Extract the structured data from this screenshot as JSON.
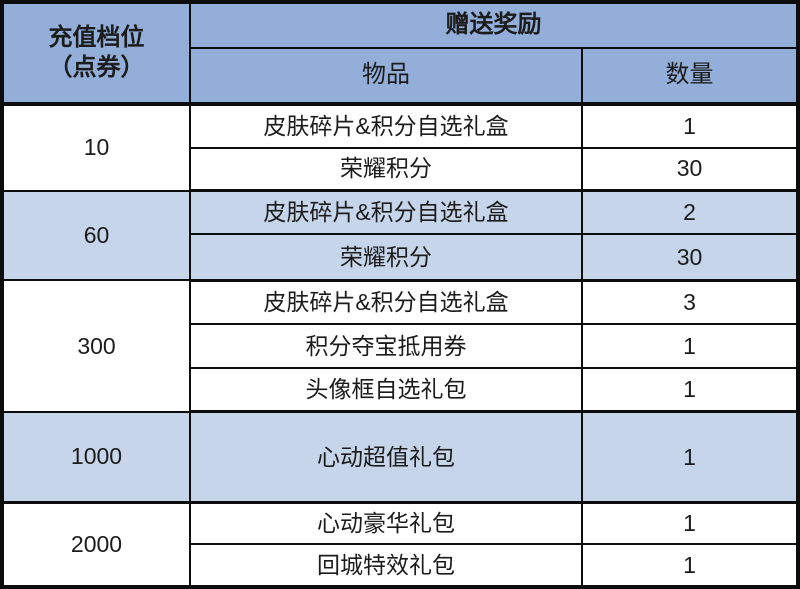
{
  "chart_data": {
    "type": "table",
    "columns": [
      "充值档位（点券）",
      "物品",
      "数量"
    ],
    "column_group_header": "赠送奖励",
    "rows": [
      [
        "10",
        "皮肤碎片&积分自选礼盒",
        "1"
      ],
      [
        "10",
        "荣耀积分",
        "30"
      ],
      [
        "60",
        "皮肤碎片&积分自选礼盒",
        "2"
      ],
      [
        "60",
        "荣耀积分",
        "30"
      ],
      [
        "300",
        "皮肤碎片&积分自选礼盒",
        "3"
      ],
      [
        "300",
        "积分夺宝抵用券",
        "1"
      ],
      [
        "300",
        "头像框自选礼包",
        "1"
      ],
      [
        "1000",
        "心动超值礼包",
        "1"
      ],
      [
        "2000",
        "心动豪华礼包",
        "1"
      ],
      [
        "2000",
        "回城特效礼包",
        "1"
      ]
    ],
    "layout_hints": {
      "tier_cells_merged_per_group": true,
      "highlighted_tier_groups": [
        "60",
        "1000"
      ],
      "group_header_spans": [
        "物品",
        "数量"
      ]
    }
  },
  "table": {
    "header": {
      "tier_label_line1": "充值档位",
      "tier_label_line2": "（点券）",
      "reward_label": "赠送奖励",
      "item_label": "物品",
      "qty_label": "数量"
    },
    "groups": [
      {
        "tier": "10",
        "highlight": false,
        "rewards": [
          {
            "item": "皮肤碎片&积分自选礼盒",
            "qty": "1"
          },
          {
            "item": "荣耀积分",
            "qty": "30"
          }
        ]
      },
      {
        "tier": "60",
        "highlight": true,
        "rewards": [
          {
            "item": "皮肤碎片&积分自选礼盒",
            "qty": "2"
          },
          {
            "item": "荣耀积分",
            "qty": "30"
          }
        ]
      },
      {
        "tier": "300",
        "highlight": false,
        "rewards": [
          {
            "item": "皮肤碎片&积分自选礼盒",
            "qty": "3"
          },
          {
            "item": "积分夺宝抵用券",
            "qty": "1"
          },
          {
            "item": "头像框自选礼包",
            "qty": "1"
          }
        ]
      },
      {
        "tier": "1000",
        "highlight": true,
        "rewards": [
          {
            "item": "心动超值礼包",
            "qty": "1"
          }
        ]
      },
      {
        "tier": "2000",
        "highlight": false,
        "rewards": [
          {
            "item": "心动豪华礼包",
            "qty": "1"
          },
          {
            "item": "回城特效礼包",
            "qty": "1"
          }
        ]
      }
    ],
    "colors": {
      "header_bg": "#92aed9",
      "highlight_bg": "#c7d5eb",
      "border": "#0d0d0d",
      "text": "#1c1c1c"
    }
  }
}
